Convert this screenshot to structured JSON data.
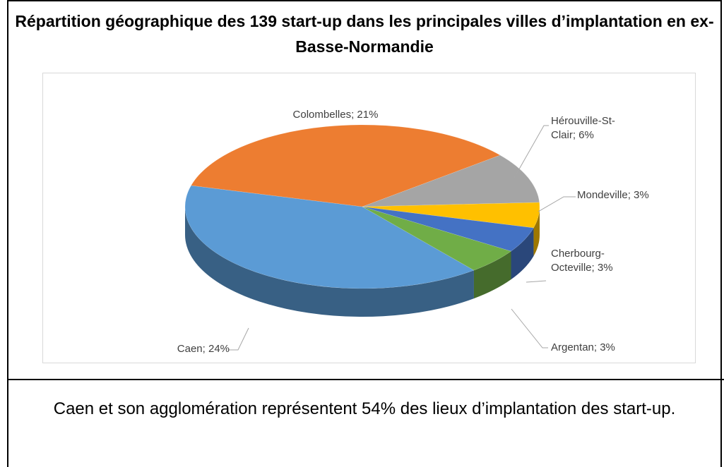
{
  "chart_data": {
    "type": "pie",
    "title": "Répartition géographique des 139 start-up dans les principales villes d’implantation en ex- Basse-Normandie",
    "values": [
      24,
      21,
      6,
      3,
      3,
      3
    ],
    "value_labels": [
      "Caen; 24%",
      "Colombelles; 21%",
      "Hérouville-St-Clair; 6%",
      "Mondeville; 3%",
      "Cherbourg-Octeville; 3%",
      "Argentan; 3%"
    ],
    "colors": [
      "#5b9bd5",
      "#ed7d31",
      "#a5a5a5",
      "#ffc000",
      "#4472c4",
      "#70ad47"
    ]
  },
  "caption": "Caen et son agglomération représentent 54% des lieux d’implantation des start-up."
}
